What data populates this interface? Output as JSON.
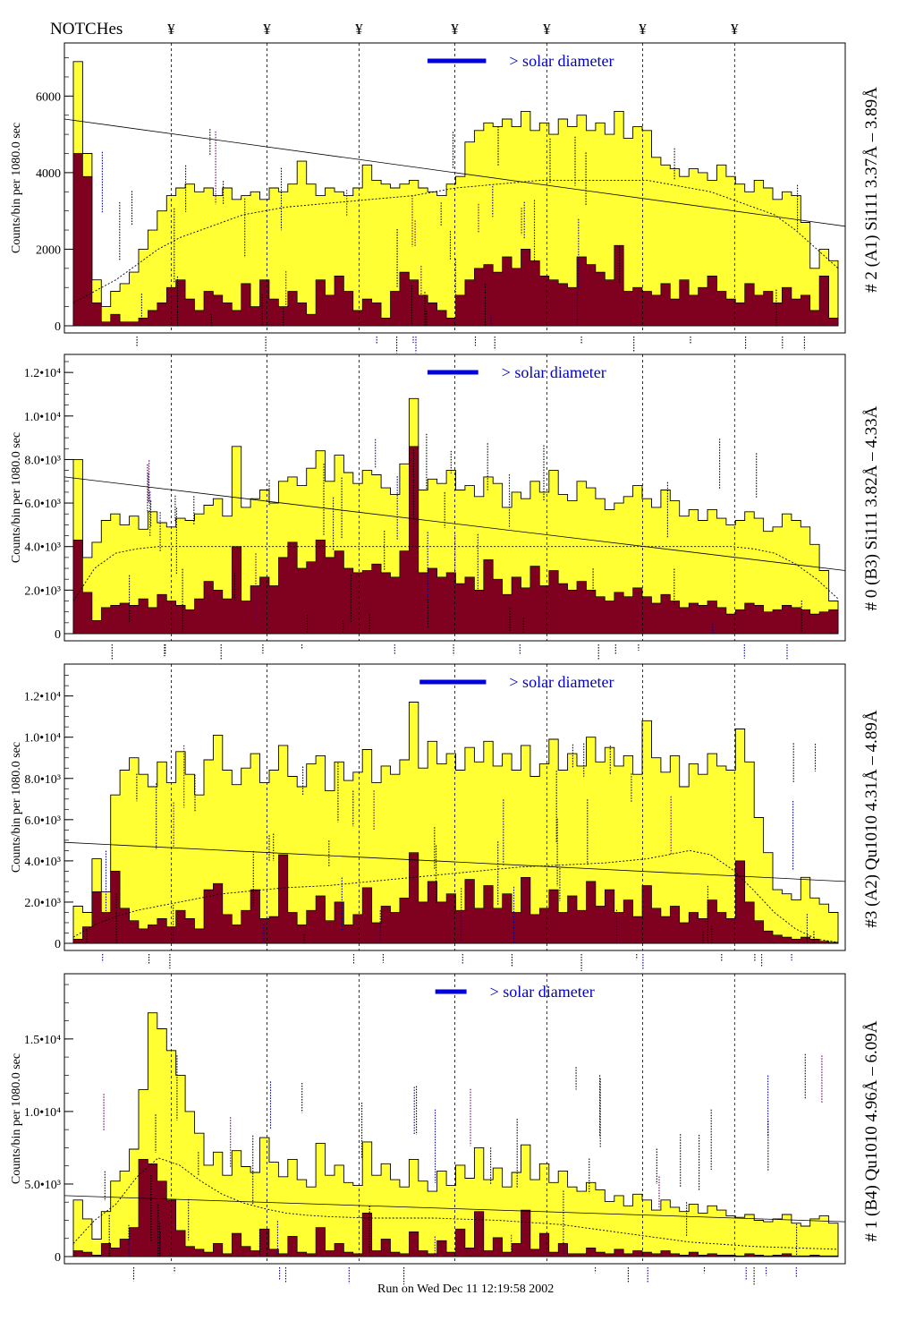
{
  "header": {
    "notch_label": "NOTCHes",
    "notch_symbol": "¥",
    "notch_count": 7,
    "run_text": "Run on Wed Dec 11 12:19:58 2002"
  },
  "colors": {
    "fill_total": "#ffff33",
    "fill_subset": "#800020",
    "outline": "#000000",
    "solar_bar": "#0000dd",
    "solar_text": "#0000cc",
    "line_marks": "#000000",
    "line_marks_blue": "#000099",
    "line_marks_purple": "#660066"
  },
  "chart_data": [
    {
      "type": "bar",
      "panel_label": "# 2 (A1) Si111  3.37Å – 3.89Å",
      "ylabel": "Counts/bin per   1080.0 sec",
      "solar_label": "> solar diameter",
      "ylim": [
        0,
        7200
      ],
      "yticks": [
        {
          "v": 0,
          "label": "0"
        },
        {
          "v": 2000,
          "label": "2000"
        },
        {
          "v": 4000,
          "label": "4000"
        },
        {
          "v": 6000,
          "label": "6000"
        }
      ],
      "series": [
        {
          "role": "total",
          "values": [
            6900,
            4500,
            1200,
            500,
            900,
            1100,
            1400,
            2000,
            2500,
            3000,
            3400,
            3600,
            3700,
            3500,
            3600,
            3400,
            3600,
            3300,
            3400,
            3500,
            3300,
            3600,
            3500,
            3700,
            4300,
            3700,
            3400,
            3600,
            3500,
            3400,
            3600,
            4200,
            3800,
            3700,
            3600,
            3700,
            3800,
            3600,
            3500,
            3400,
            3700,
            3900,
            4800,
            5100,
            5300,
            5200,
            5400,
            5200,
            5600,
            5100,
            5300,
            5000,
            5400,
            5200,
            5500,
            5100,
            5300,
            5000,
            5600,
            4900,
            5200,
            5100,
            4400,
            4200,
            4100,
            3900,
            4100,
            4000,
            3800,
            4200,
            3900,
            3700,
            3500,
            3800,
            3600,
            3300,
            3500,
            3400,
            2700,
            1500,
            2000,
            1700
          ]
        },
        {
          "role": "subset",
          "values": [
            4500,
            3900,
            600,
            100,
            300,
            100,
            100,
            200,
            400,
            600,
            1000,
            1200,
            700,
            400,
            900,
            800,
            600,
            400,
            1100,
            500,
            1200,
            700,
            500,
            900,
            600,
            300,
            1200,
            800,
            1300,
            900,
            400,
            700,
            600,
            200,
            900,
            1400,
            1200,
            800,
            600,
            400,
            200,
            800,
            1200,
            1500,
            1600,
            1400,
            1800,
            1500,
            2000,
            1700,
            1300,
            1200,
            1100,
            1000,
            1800,
            1600,
            1400,
            1200,
            2100,
            900,
            1000,
            900,
            800,
            1100,
            700,
            1200,
            800,
            1000,
            1300,
            900,
            700,
            600,
            1100,
            800,
            900,
            600,
            1000,
            700,
            800,
            400,
            1300,
            200
          ]
        }
      ],
      "curve": [
        600,
        900,
        1200,
        1600,
        2000,
        2300,
        2500,
        2700,
        2900,
        3000,
        3100,
        3150,
        3200,
        3250,
        3300,
        3350,
        3400,
        3500,
        3600,
        3650,
        3700,
        3750,
        3800,
        3800,
        3800,
        3800,
        3800,
        3800,
        3700,
        3600,
        3500,
        3300,
        3100,
        2900,
        2500,
        2000,
        1500
      ],
      "trend": [
        5400,
        2600
      ],
      "notch_positions": [
        0.13,
        0.255,
        0.375,
        0.5,
        0.62,
        0.745,
        0.865
      ],
      "solar_bar": [
        0.465,
        0.54
      ]
    },
    {
      "type": "bar",
      "panel_label": "# 0 (B3) Si111  3.82Å – 4.33Å",
      "ylabel": "Counts/bin per   1080.0 sec",
      "solar_label": "> solar diameter",
      "ylim": [
        0,
        12500
      ],
      "yticks": [
        {
          "v": 0,
          "label": "0"
        },
        {
          "v": 2000,
          "label": "2.0•10³"
        },
        {
          "v": 4000,
          "label": "4.0•10³"
        },
        {
          "v": 6000,
          "label": "6.0•10³"
        },
        {
          "v": 8000,
          "label": "8.0•10³"
        },
        {
          "v": 10000,
          "label": "1.0•10⁴"
        },
        {
          "v": 12000,
          "label": "1.2•10⁴"
        }
      ],
      "series": [
        {
          "role": "total",
          "values": [
            8000,
            3500,
            4200,
            5200,
            5500,
            5000,
            5400,
            4800,
            5600,
            5100,
            4900,
            5300,
            5200,
            5500,
            5900,
            6200,
            5400,
            8600,
            5800,
            6200,
            6600,
            6000,
            7000,
            7200,
            6800,
            7600,
            8400,
            7000,
            8200,
            7400,
            6900,
            7500,
            7300,
            6700,
            6400,
            7800,
            10800,
            6600,
            7100,
            6900,
            7500,
            6600,
            6800,
            6300,
            7200,
            6900,
            5800,
            6500,
            6200,
            7000,
            6500,
            7500,
            6400,
            6100,
            7000,
            6700,
            6200,
            5700,
            6000,
            6300,
            6800,
            6200,
            5800,
            6600,
            6100,
            5400,
            5700,
            5200,
            5700,
            5300,
            5000,
            5200,
            5600,
            5300,
            4700,
            4900,
            5500,
            5200,
            4900,
            4100,
            2900,
            1500
          ]
        },
        {
          "role": "subset",
          "values": [
            4300,
            1900,
            600,
            1200,
            1300,
            1400,
            1300,
            1600,
            1200,
            1800,
            1500,
            1300,
            1100,
            1600,
            2400,
            2000,
            1600,
            4000,
            1500,
            2200,
            2600,
            2200,
            3500,
            4200,
            3000,
            3300,
            4300,
            3500,
            3800,
            3000,
            2800,
            2900,
            3200,
            2800,
            2600,
            3800,
            8600,
            2800,
            3000,
            2600,
            2800,
            2300,
            2600,
            2000,
            3400,
            2500,
            1800,
            2600,
            2100,
            3100,
            2200,
            2900,
            2300,
            2000,
            2400,
            2000,
            1700,
            1500,
            1900,
            1700,
            2100,
            1700,
            1400,
            1800,
            1500,
            1200,
            1400,
            1300,
            1500,
            1200,
            900,
            1100,
            1400,
            1300,
            1000,
            1100,
            1300,
            1200,
            1100,
            900,
            1000,
            1100
          ]
        }
      ],
      "curve": [
        1500,
        3000,
        3700,
        3900,
        4000,
        4000,
        4000,
        4000,
        4000,
        4000,
        4000,
        4000,
        4000,
        4000,
        4000,
        4000,
        4000,
        4000,
        4000,
        4000,
        4000,
        4000,
        4000,
        4000,
        4000,
        4000,
        4000,
        4000,
        4000,
        4000,
        4000,
        4000,
        3900,
        3700,
        3200,
        2500,
        1600
      ],
      "trend": [
        7200,
        2900
      ],
      "notch_positions": [
        0.13,
        0.255,
        0.375,
        0.5,
        0.62,
        0.745,
        0.865
      ],
      "solar_bar": [
        0.465,
        0.53
      ]
    },
    {
      "type": "bar",
      "panel_label": "#3 (A2) Qu1010  4.31Å – 4.89Å",
      "ylabel": "Counts/bin per   1080.0 sec",
      "solar_label": "> solar diameter",
      "ylim": [
        0,
        13200
      ],
      "yticks": [
        {
          "v": 0,
          "label": "0"
        },
        {
          "v": 2000,
          "label": "2.0•10³"
        },
        {
          "v": 4000,
          "label": "4.0•10³"
        },
        {
          "v": 6000,
          "label": "6.0•10³"
        },
        {
          "v": 8000,
          "label": "8.0•10³"
        },
        {
          "v": 10000,
          "label": "1.0•10⁴"
        },
        {
          "v": 12000,
          "label": "1.2•10⁴"
        }
      ],
      "series": [
        {
          "role": "total",
          "values": [
            1800,
            1500,
            4100,
            2500,
            7200,
            8400,
            9000,
            8200,
            7600,
            8800,
            7800,
            9300,
            8200,
            7200,
            8900,
            10100,
            8400,
            7700,
            8500,
            9200,
            7800,
            8400,
            9600,
            8100,
            7600,
            8700,
            9100,
            7400,
            8800,
            7900,
            8300,
            9400,
            7800,
            8600,
            8200,
            8900,
            11700,
            8500,
            9800,
            8700,
            9200,
            8400,
            9500,
            8800,
            9800,
            8600,
            9200,
            8400,
            9600,
            8100,
            8700,
            9900,
            8400,
            9200,
            8600,
            10000,
            8800,
            9500,
            8600,
            9100,
            8200,
            10800,
            9000,
            8300,
            9100,
            7600,
            8700,
            8200,
            9200,
            8600,
            8400,
            10400,
            8800,
            6100,
            4400,
            2600,
            2400,
            2100,
            3200,
            2200,
            1900,
            1500
          ]
        },
        {
          "role": "subset",
          "values": [
            200,
            800,
            2500,
            1500,
            3500,
            1700,
            1100,
            700,
            900,
            1200,
            800,
            1600,
            1200,
            700,
            2600,
            2900,
            1400,
            900,
            1600,
            2600,
            1200,
            1300,
            4300,
            1500,
            900,
            1600,
            2300,
            1100,
            2000,
            900,
            1400,
            2700,
            1000,
            1800,
            1500,
            2200,
            4400,
            2000,
            3000,
            2000,
            2400,
            1600,
            3100,
            1700,
            2800,
            1700,
            2400,
            1500,
            3200,
            1400,
            1700,
            2600,
            1500,
            2300,
            1600,
            3000,
            1800,
            2600,
            1500,
            2100,
            1300,
            2800,
            1700,
            1300,
            1800,
            1000,
            1500,
            1200,
            2100,
            1500,
            1200,
            4000,
            2000,
            1100,
            600,
            400,
            300,
            200,
            300,
            200,
            100,
            50
          ]
        }
      ],
      "curve": [
        300,
        900,
        1300,
        1600,
        1800,
        2000,
        2200,
        2400,
        2500,
        2600,
        2700,
        2750,
        2800,
        2900,
        3000,
        3100,
        3200,
        3300,
        3400,
        3500,
        3600,
        3700,
        3750,
        3800,
        3850,
        3900,
        4000,
        4100,
        4300,
        4500,
        4300,
        3600,
        2600,
        1500,
        700,
        200,
        50
      ],
      "trend": [
        4900,
        3000
      ],
      "notch_positions": [
        0.13,
        0.255,
        0.375,
        0.5,
        0.62,
        0.745,
        0.865
      ],
      "solar_bar": [
        0.455,
        0.54
      ]
    },
    {
      "type": "bar",
      "panel_label": "# 1 (B4) Qu1010 4.96Å – 6.09Å",
      "ylabel": "Counts/bin per   1080.0 sec",
      "solar_label": "> solar diameter",
      "ylim": [
        0,
        19000
      ],
      "yticks": [
        {
          "v": 0,
          "label": "0"
        },
        {
          "v": 5000,
          "label": "5.0•10³"
        },
        {
          "v": 10000,
          "label": "1.0•10⁴"
        },
        {
          "v": 15000,
          "label": "1.5•10⁴"
        }
      ],
      "series": [
        {
          "role": "total",
          "values": [
            3900,
            2600,
            1200,
            3100,
            5200,
            5900,
            7400,
            11500,
            16800,
            15700,
            14200,
            12500,
            10000,
            8500,
            6300,
            7200,
            5600,
            7300,
            6200,
            5800,
            8200,
            6500,
            5500,
            6700,
            5300,
            4800,
            7800,
            5600,
            6300,
            5100,
            4900,
            7900,
            5600,
            6400,
            5300,
            4800,
            6700,
            5200,
            4500,
            5900,
            4900,
            6300,
            5400,
            7500,
            5300,
            6100,
            4800,
            5800,
            7700,
            5300,
            6400,
            5100,
            5900,
            4800,
            4500,
            5100,
            4600,
            3800,
            4200,
            3500,
            4300,
            3900,
            3200,
            3900,
            3400,
            3100,
            3600,
            3000,
            3500,
            3200,
            2800,
            2700,
            2900,
            2500,
            2400,
            2600,
            2900,
            2300,
            2100,
            2600,
            2800,
            2300
          ]
        },
        {
          "role": "subset",
          "values": [
            400,
            300,
            100,
            900,
            600,
            1200,
            2000,
            6700,
            6400,
            5200,
            3900,
            1800,
            700,
            500,
            300,
            900,
            200,
            1600,
            700,
            400,
            1900,
            500,
            200,
            1400,
            300,
            200,
            2000,
            400,
            900,
            300,
            200,
            3000,
            400,
            1200,
            300,
            200,
            1700,
            400,
            200,
            1100,
            300,
            1900,
            600,
            3100,
            400,
            1300,
            300,
            900,
            3200,
            500,
            1600,
            300,
            900,
            200,
            200,
            600,
            300,
            200,
            500,
            200,
            400,
            300,
            200,
            400,
            200,
            100,
            300,
            100,
            200,
            100,
            100,
            50,
            200,
            100,
            50,
            100,
            200,
            50,
            50,
            100,
            50,
            50
          ]
        }
      ],
      "curve": [
        900,
        2500,
        3600,
        5500,
        6800,
        6300,
        5200,
        4300,
        3700,
        3300,
        3000,
        2850,
        2750,
        2700,
        2650,
        2650,
        2650,
        2650,
        2600,
        2550,
        2500,
        2400,
        2300,
        2200,
        2000,
        1800,
        1600,
        1400,
        1200,
        1000,
        900,
        800,
        700,
        650,
        600,
        550,
        500
      ],
      "trend": [
        4200,
        2400
      ],
      "notch_positions": [
        0.13,
        0.255,
        0.375,
        0.5,
        0.62,
        0.745,
        0.865
      ],
      "solar_bar": [
        0.475,
        0.515
      ]
    }
  ]
}
